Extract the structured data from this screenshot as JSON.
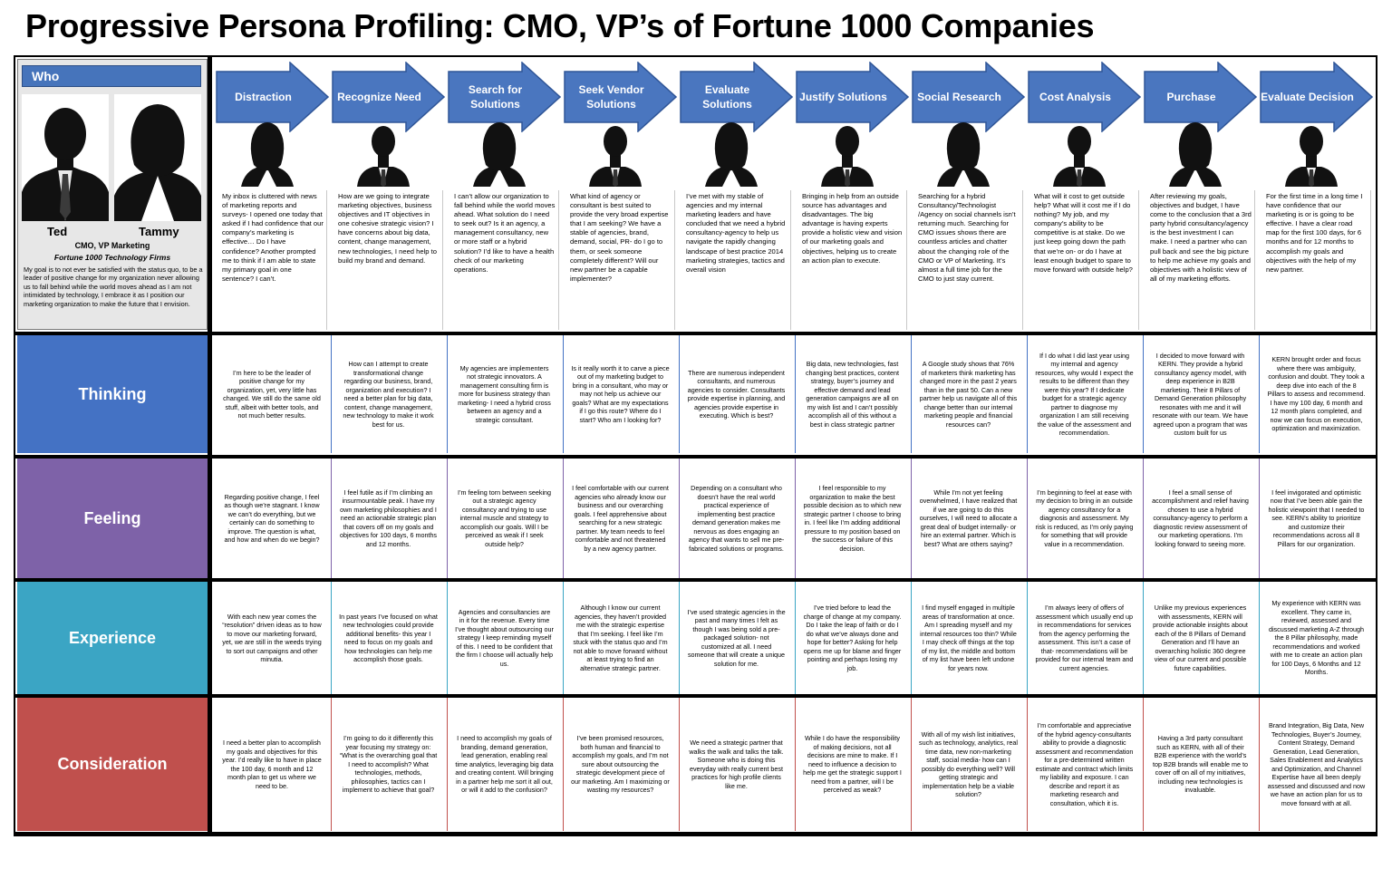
{
  "title": "Progressive Persona Profiling: CMO, VP’s of Fortune 1000 Companies",
  "who": {
    "header": "Who",
    "name_male": "Ted",
    "name_female": "Tammy",
    "role": "CMO, VP Marketing",
    "company": "Fortune 1000 Technology Firms",
    "goal": "My goal is to not ever be satisfied with the status quo, to be a leader of positive change for my organization never allowing us to fall behind while the world moves ahead as I am not intimidated by technology, I embrace it as I position our marketing organization to make the future that I envision."
  },
  "stages": [
    {
      "label": "Distraction",
      "persona": "female",
      "thought": "My inbox is cluttered with news of marketing reports and surveys- I opened one today that asked if I had confidence that our company’s marketing is effective… Do I have confidence? Another prompted me to think if I am able to state my primary goal in one sentence? I can’t."
    },
    {
      "label": "Recognize Need",
      "persona": "male",
      "thought": "How are we going to integrate marketing objectives, business objectives and IT objectives in one cohesive strategic vision? I have concerns about big data, content, change management, new technologies, I need help to build my brand and demand."
    },
    {
      "label": "Search for Solutions",
      "persona": "female",
      "thought": "I can’t allow our organization to fall behind while the world moves ahead. What solution do I need to seek out? Is it an agency, a management consultancy, new or more staff or a hybrid solution? I’d like to have a health check of our marketing operations."
    },
    {
      "label": "Seek Vendor Solutions",
      "persona": "male",
      "thought": "What kind of agency or consultant is best suited to provide the very broad expertise that I am seeking? We have a stable of agencies, brand, demand, social, PR- do I go to them, or seek someone completely different? Will our new partner be a capable implementer?"
    },
    {
      "label": "Evaluate Solutions",
      "persona": "female",
      "thought": "I’ve met with my stable of agencies and my internal marketing leaders and have concluded that we need a hybrid consultancy-agency to help us navigate the rapidly changing landscape of best practice 2014 marketing strategies, tactics and overall vision"
    },
    {
      "label": "Justify Solutions",
      "persona": "male",
      "thought": "Bringing in help from an outside source has advantages and disadvantages. The big advantage is having experts provide a holistic view and vision of our marketing goals and objectives, helping us to create an action plan to execute."
    },
    {
      "label": "Social Research",
      "persona": "female",
      "thought": "Searching for a hybrid Consultancy/Technologist /Agency on social channels isn’t returning much. Searching for CMO issues shows there are countless articles and chatter about the changing role of the CMO or VP of Marketing. It’s almost a full time job for the CMO to just stay current."
    },
    {
      "label": "Cost Analysis",
      "persona": "male",
      "thought": "What will it cost to get outside help? What will it cost me if I do nothing? My job, and my company’s ability to be competitive is at stake. Do we just keep going down the path that we’re on- or do I have at least enough budget to spare to move forward with outside help?"
    },
    {
      "label": "Purchase",
      "persona": "female",
      "thought": "After reviewing my goals, objectives and budget, I have come to the conclusion that a 3rd party hybrid consultancy/agency is the best investment I can make. I need a partner who can pull back and see the big picture to help me achieve my goals and objectives with a holistic view of all of my marketing efforts."
    },
    {
      "label": "Evaluate Decision",
      "persona": "male",
      "thought": "For the first time in a long time I have confidence that our marketing is or is going to be effective. I have a clear road map for the first 100 days, for 6 months and for 12 months to accomplish my goals and objectives with the help of my new partner."
    }
  ],
  "rows": [
    {
      "label": "Thinking",
      "color": "#4472c4",
      "cells": [
        "I’m here to be the leader of positive change for my organization, yet, very little has changed. We still do the same old stuff, albeit with better tools, and not much better results.",
        "How can I attempt to create transformational change regarding our business, brand, organization and execution? I need a better plan for big data, content, change management, new technology to make it work best for us.",
        "My agencies are implementers not strategic innovators. A management consulting firm is more for business strategy than marketing- I need a hybrid cross between an agency and a strategic consultant.",
        "Is it really worth it to carve a piece out of my marketing budget to bring in a consultant, who may or may not help us achieve our goals? What are my expectations if I go this route? Where do I start? Who am I looking for?",
        "There are numerous independent consultants, and numerous agencies to consider. Consultants provide expertise in planning, and agencies provide expertise in executing. Which is best?",
        "Big data, new technologies, fast changing best practices, content strategy, buyer’s journey and effective demand and lead generation campaigns are all on my wish list and I can’t possibly accomplish all of this without a best in class strategic partner",
        "A Google study shows that 76% of marketers think marketing has changed more in the past 2 years than in the past 50. Can a new partner help us navigate all of this change better than our internal marketing people and financial resources can?",
        "If I do what I did last year using my internal and agency resources, why would I expect the results to be different than they were this year? If I dedicate budget for a strategic agency partner to diagnose my organization I am still receiving the value of the assessment and recommendation.",
        "I decided to move forward with KERN. They provide a hybrid consultancy agency model, with deep experience in B2B marketing. Their 8 Pillars of Demand Generation philosophy resonates with me and it will resonate with our team. We have agreed upon a program that was custom built for us",
        "KERN brought order and focus where there was ambiguity, confusion and doubt. They took a deep dive into each of the 8 Pillars to assess and recommend. I have my 100 day, 6 month and 12 month plans completed, and now we can focus on execution, optimization and maximization."
      ]
    },
    {
      "label": "Feeling",
      "color": "#7e62a8",
      "cells": [
        "Regarding positive change, I feel as though we’re stagnant. I know we can’t do everything, but we certainly can do something to improve. The question is what, and how and when do we begin?",
        "I feel futile as if I’m climbing an insurmountable peak. I have my own marketing philosophies and I need an actionable strategic plan that covers off on my goals and objectives for 100 days, 6 months and 12 months.",
        "I’m feeling torn between seeking out a strategic agency consultancy and trying to use internal muscle and strategy to accomplish our goals. Will I be perceived as weak if I seek outside help?",
        "I feel comfortable with our current agencies who already know our business and our overarching goals. I feel apprehensive about searching for a new strategic partner. My team needs to feel comfortable and not threatened by a new agency partner.",
        "Depending on a consultant who doesn’t have the real world practical experience of implementing best practice demand generation makes me nervous as does engaging an agency that wants to sell me pre-fabricated solutions or programs.",
        "I feel responsible to my organization to make the best possible decision as to which new strategic partner I choose to bring in. I feel like I’m adding additional pressure to my position based on the success or failure of this decision.",
        "While I’m not yet feeling overwhelmed, I have realized that if we are going to do this ourselves, I will need to allocate a great deal of budget internally- or hire an external partner. Which is best? What are others saying?",
        "I’m beginning to feel at ease with my decision to bring in an outside agency consultancy for a diagnosis and assessment. My risk is reduced, as I’m only paying for something that will provide value in a recommendation.",
        "I feel a small sense of accomplishment and relief having chosen to use a hybrid consultancy-agency to perform a diagnostic review assessment of our marketing operations. I’m looking forward to seeing more.",
        "I feel invigorated and optimistic now that I’ve been able gain the holistic viewpoint that I needed to see. KERN’s ability to prioritize and customize their recommendations across all 8 Pillars for our organization."
      ]
    },
    {
      "label": "Experience",
      "color": "#3ba5c4",
      "cells": [
        "With each new year comes the “resolution” driven ideas as to how to move our marketing forward, yet, we are still in the weeds trying to sort out campaigns and other minutia.",
        "In past years I’ve focused on what new technologies could provide additional benefits- this year I need to focus on my goals and how technologies can help me accomplish those goals.",
        "Agencies and consultancies are in it for the revenue. Every time I’ve thought about outsourcing our strategy I keep reminding myself of this. I need to be confident that the firm I choose will actually help us.",
        "Although I know our current agencies, they haven’t provided me with the strategic expertise that I’m seeking. I feel like I’m stuck with the status quo and I’m not able to move forward without at least trying to find an alternative strategic partner.",
        "I’ve used strategic agencies in the past and many times I felt as though I was being sold a pre-packaged solution- not customized at all. I need someone that will create a unique solution for me.",
        "I’ve tried before to lead the charge of change at my company. Do I take the leap of faith or do I do what we’ve always done and hope for better? Asking for help opens me up for blame and finger pointing and perhaps losing my job.",
        "I find myself engaged in multiple areas of transformation at once. Am I spreading myself and my internal resources too thin? While I may check off things at the top of my list, the middle and bottom of my list have been left undone for years now.",
        "I’m always leery of offers of assessment which usually end up in recommendations for services from the agency performing the assessment. This isn’t a case of that- recommendations will be provided for our internal team and current agencies.",
        "Unlike my previous experiences with assessments, KERN will provide actionable insights about each of the 8 Pillars of Demand Generation and I’ll have an overarching holistic 360 degree view of our current and possible future capabilities.",
        "My experience with KERN was excellent. They came in, reviewed, assessed and discussed marketing A-Z through the 8 Pillar philosophy, made recommendations and worked with me to create an action plan for 100 Days, 6 Months and 12 Months."
      ]
    },
    {
      "label": "Consideration",
      "color": "#c0504d",
      "cells": [
        "I need a better plan to accomplish my goals and objectives for this year. I’d really like to have in place the 100 day, 6 month and 12 month plan to get us where we need to be.",
        "I’m going to do it differently this year focusing my strategy on: “What is the overarching goal that I need to accomplish? What technologies, methods, philosophies, tactics can I implement to achieve that goal?",
        "I need to accomplish my goals of branding, demand generation, lead generation, enabling real time analytics, leveraging big data and creating content. Will bringing in a partner help me sort it all out, or will it add to the confusion?",
        "I’ve been promised resources, both human and financial to accomplish my goals, and I’m not sure about outsourcing the strategic development piece of our marketing. Am I maximizing or wasting my resources?",
        "We need a strategic partner that walks the walk and talks the talk. Someone who is doing this everyday with really current best practices for high profile clients like me.",
        "While I do have the responsibility of making decisions, not all decisions are mine to make. If I need to influence a decision to help me get the strategic support I need from a partner, will I be perceived as weak?",
        "With all of my wish list initiatives, such as technology, analytics, real time data, new non-marketing staff, social media- how can I possibly do everything well? Will getting strategic and implementation help be a viable solution?",
        "I’m comfortable and appreciative of the hybrid agency-consultants ability to provide a diagnostic assessment and recommendation for a pre-determined written estimate and contract which limits my liability and exposure. I can describe and report it as marketing research and consultation, which it is.",
        "Having a 3rd party consultant such as KERN, with all of their B2B experience with the world’s top B2B brands will enable me to cover off on all of my initiatives, including new technologies is invaluable.",
        "Brand Integration, Big Data, New Technologies, Buyer’s Journey, Content Strategy, Demand Generation, Lead Generation, Sales Enablement and Analytics and Optimization, and Channel Expertise have all been deeply assessed and discussed and now we have an action plan for us to move forward with at all."
      ]
    }
  ],
  "colors": {
    "arrow": "#4a76bf",
    "arrow_border": "#2f5597"
  },
  "icons": [
    "male-silhouette-icon",
    "female-silhouette-icon"
  ]
}
